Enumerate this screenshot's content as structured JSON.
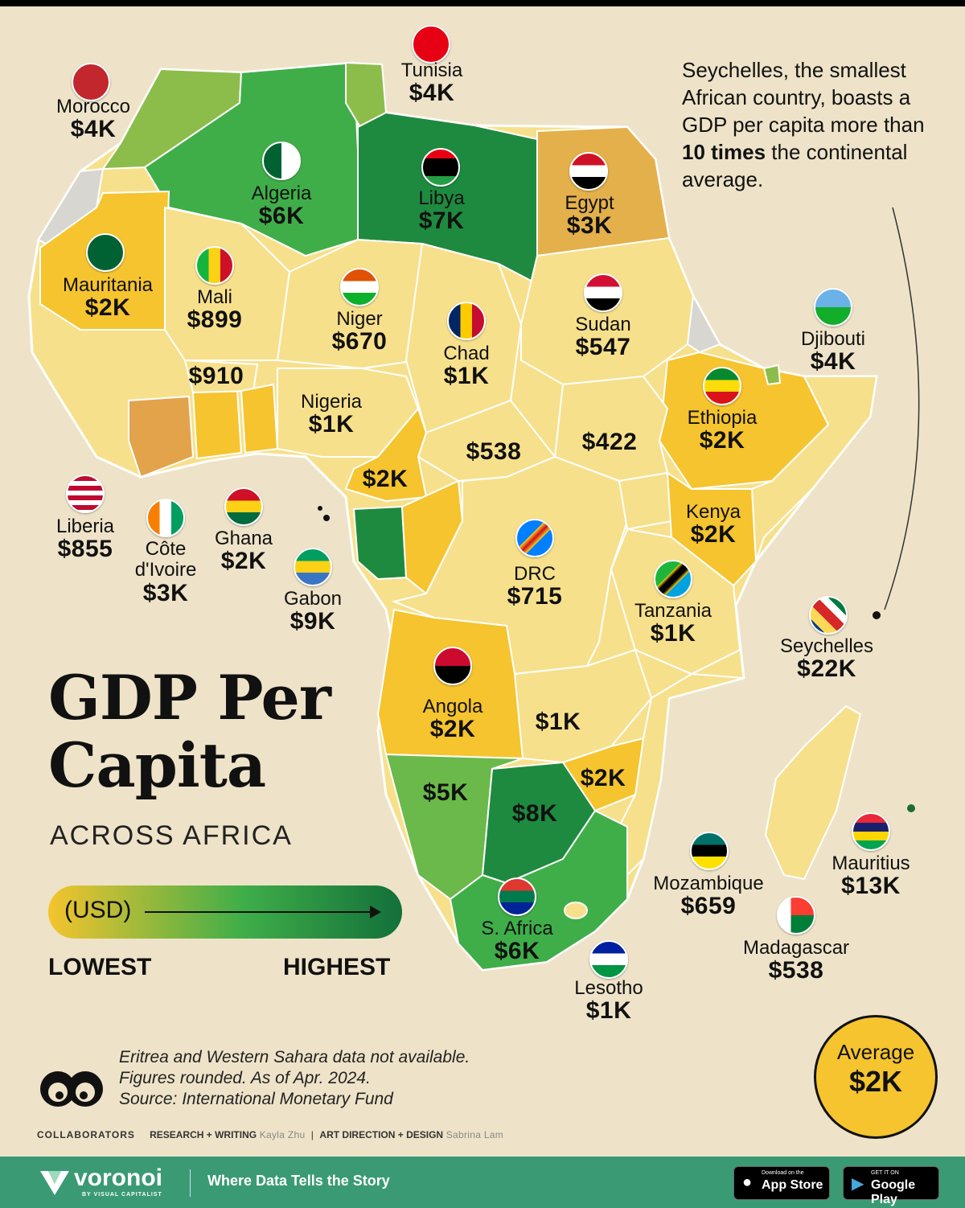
{
  "title_line1": "GDP Per",
  "title_line2": "Capita",
  "subtitle": "ACROSS AFRICA",
  "legend": {
    "unit": "(USD)",
    "low": "LOWEST",
    "high": "HIGHEST",
    "color_low": "#f5c42e",
    "color_high": "#13703a"
  },
  "callout": {
    "part1": "Seychelles, the smallest African country, boasts a GDP per capita more than ",
    "bold": "10 times",
    "part2": " the continental average."
  },
  "average": {
    "label": "Average",
    "value": "$2K"
  },
  "countries": [
    {
      "name": "Morocco",
      "value": "$4K"
    },
    {
      "name": "Tunisia",
      "value": "$4K"
    },
    {
      "name": "Algeria",
      "value": "$6K"
    },
    {
      "name": "Libya",
      "value": "$7K"
    },
    {
      "name": "Egypt",
      "value": "$3K"
    },
    {
      "name": "Mauritania",
      "value": "$2K"
    },
    {
      "name": "Mali",
      "value": "$899"
    },
    {
      "name": "Niger",
      "value": "$670"
    },
    {
      "name": "Chad",
      "value": "$1K"
    },
    {
      "name": "Sudan",
      "value": "$547"
    },
    {
      "name": "Djibouti",
      "value": "$4K"
    },
    {
      "name": "Ethiopia",
      "value": "$2K"
    },
    {
      "name": "Nigeria",
      "value": "$1K"
    },
    {
      "name": "Kenya",
      "value": "$2K"
    },
    {
      "name": "DRC",
      "value": "$715"
    },
    {
      "name": "Tanzania",
      "value": "$1K"
    },
    {
      "name": "Seychelles",
      "value": "$22K"
    },
    {
      "name": "Liberia",
      "value": "$855"
    },
    {
      "name": "Côte d'Ivoire",
      "value": "$3K"
    },
    {
      "name": "Ghana",
      "value": "$2K"
    },
    {
      "name": "Gabon",
      "value": "$9K"
    },
    {
      "name": "Angola",
      "value": "$2K"
    },
    {
      "name": "Mauritius",
      "value": "$13K"
    },
    {
      "name": "Mozambique",
      "value": "$659"
    },
    {
      "name": "Madagascar",
      "value": "$538"
    },
    {
      "name": "S. Africa",
      "value": "$6K"
    },
    {
      "name": "Lesotho",
      "value": "$1K"
    }
  ],
  "unlabeled_values": [
    "$910",
    "$2K",
    "$538",
    "$422",
    "$1K",
    "$2K",
    "$5K",
    "$8K"
  ],
  "footnotes": [
    "Eritrea and Western Sahara data not available.",
    "Figures rounded. As of Apr. 2024.",
    "Source: International Monetary Fund"
  ],
  "collaborators": {
    "label": "COLLABORATORS",
    "r_w": "RESEARCH + WRITING",
    "r_w_name": "Kayla Zhu",
    "ad": "ART DIRECTION + DESIGN",
    "ad_name": "Sabrina Lam"
  },
  "footer": {
    "brand": "voronoi",
    "by": "BY VISUAL CAPITALIST",
    "tagline": "Where Data Tells the Story",
    "app_top": "Download on the",
    "app": "App Store",
    "gp_top": "GET IT ON",
    "gp": "Google Play"
  }
}
